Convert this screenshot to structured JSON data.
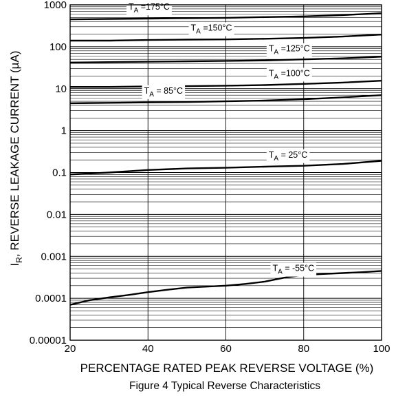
{
  "chart_data": {
    "type": "line",
    "title": "Figure 4 Typical Reverse Characteristics",
    "xlabel": "PERCENTAGE RATED PEAK REVERSE VOLTAGE (%)",
    "ylabel": {
      "main": "I",
      "sub": "R",
      "rest": ", REVERSE LEAKAGE CURRENT (µA)"
    },
    "xlim": [
      20,
      100
    ],
    "ylim": [
      1e-05,
      1000
    ],
    "yscale": "log",
    "grid": true,
    "x_ticks": [
      {
        "value": 20,
        "label": "20"
      },
      {
        "value": 40,
        "label": "40"
      },
      {
        "value": 60,
        "label": "60"
      },
      {
        "value": 80,
        "label": "80"
      },
      {
        "value": 100,
        "label": "100"
      }
    ],
    "y_ticks": [
      {
        "value": 1000,
        "label": "1000"
      },
      {
        "value": 100,
        "label": "100"
      },
      {
        "value": 10,
        "label": "10"
      },
      {
        "value": 1,
        "label": "1"
      },
      {
        "value": 0.1,
        "label": "0.1"
      },
      {
        "value": 0.01,
        "label": "0.01"
      },
      {
        "value": 0.001,
        "label": "0.001"
      },
      {
        "value": 0.0001,
        "label": "0.0001"
      },
      {
        "value": 1e-05,
        "label": "0.00001"
      }
    ],
    "series": [
      {
        "name": "175°C",
        "label": {
          "main": "T",
          "sub": "A",
          "rest": " =175°C"
        },
        "label_at": 35,
        "x": [
          20,
          30,
          40,
          50,
          60,
          70,
          80,
          90,
          100
        ],
        "values": [
          450,
          460,
          470,
          480,
          490,
          510,
          530,
          570,
          630
        ]
      },
      {
        "name": "150°C",
        "label": {
          "main": "T",
          "sub": "A",
          "rest": " =150°C"
        },
        "label_at": 51,
        "x": [
          20,
          30,
          40,
          50,
          60,
          70,
          80,
          90,
          100
        ],
        "values": [
          140,
          140,
          145,
          148,
          150,
          155,
          162,
          175,
          195
        ]
      },
      {
        "name": "125°C",
        "label": {
          "main": "T",
          "sub": "A",
          "rest": " =125°C"
        },
        "label_at": 71,
        "x": [
          20,
          30,
          40,
          50,
          60,
          70,
          80,
          90,
          100
        ],
        "values": [
          42,
          43,
          44,
          45,
          46,
          47,
          50,
          53,
          58
        ]
      },
      {
        "name": "100°C",
        "label": {
          "main": "T",
          "sub": "A",
          "rest": " =100°C"
        },
        "label_at": 71,
        "x": [
          20,
          30,
          40,
          50,
          60,
          70,
          80,
          90,
          100
        ],
        "values": [
          11,
          11,
          11.3,
          11.5,
          11.8,
          12.2,
          13,
          14,
          15.5
        ]
      },
      {
        "name": "85°C",
        "label": {
          "main": "T",
          "sub": "A",
          "rest": " = 85°C"
        },
        "label_at": 39,
        "x": [
          20,
          30,
          40,
          50,
          60,
          70,
          80,
          90,
          100
        ],
        "values": [
          4.5,
          4.6,
          4.7,
          4.8,
          5.0,
          5.2,
          5.6,
          6.2,
          7.0
        ]
      },
      {
        "name": "25°C",
        "label": {
          "main": "T",
          "sub": "A",
          "rest": " = 25°C"
        },
        "label_at": 71,
        "x": [
          20,
          25,
          30,
          40,
          50,
          60,
          70,
          80,
          90,
          100
        ],
        "values": [
          0.09,
          0.095,
          0.1,
          0.115,
          0.125,
          0.13,
          0.138,
          0.145,
          0.16,
          0.19
        ]
      },
      {
        "name": "-55°C",
        "label": {
          "main": "T",
          "sub": "A",
          "rest": " = -55°C"
        },
        "label_at": 72,
        "x": [
          20,
          25,
          30,
          35,
          40,
          45,
          50,
          55,
          60,
          65,
          70,
          75,
          80,
          85,
          90,
          95,
          100
        ],
        "values": [
          7e-05,
          9e-05,
          0.000105,
          0.00012,
          0.00014,
          0.00016,
          0.00018,
          0.00019,
          0.0002,
          0.00022,
          0.00025,
          0.00031,
          0.00036,
          0.00038,
          0.0004,
          0.00042,
          0.00045
        ]
      }
    ]
  }
}
